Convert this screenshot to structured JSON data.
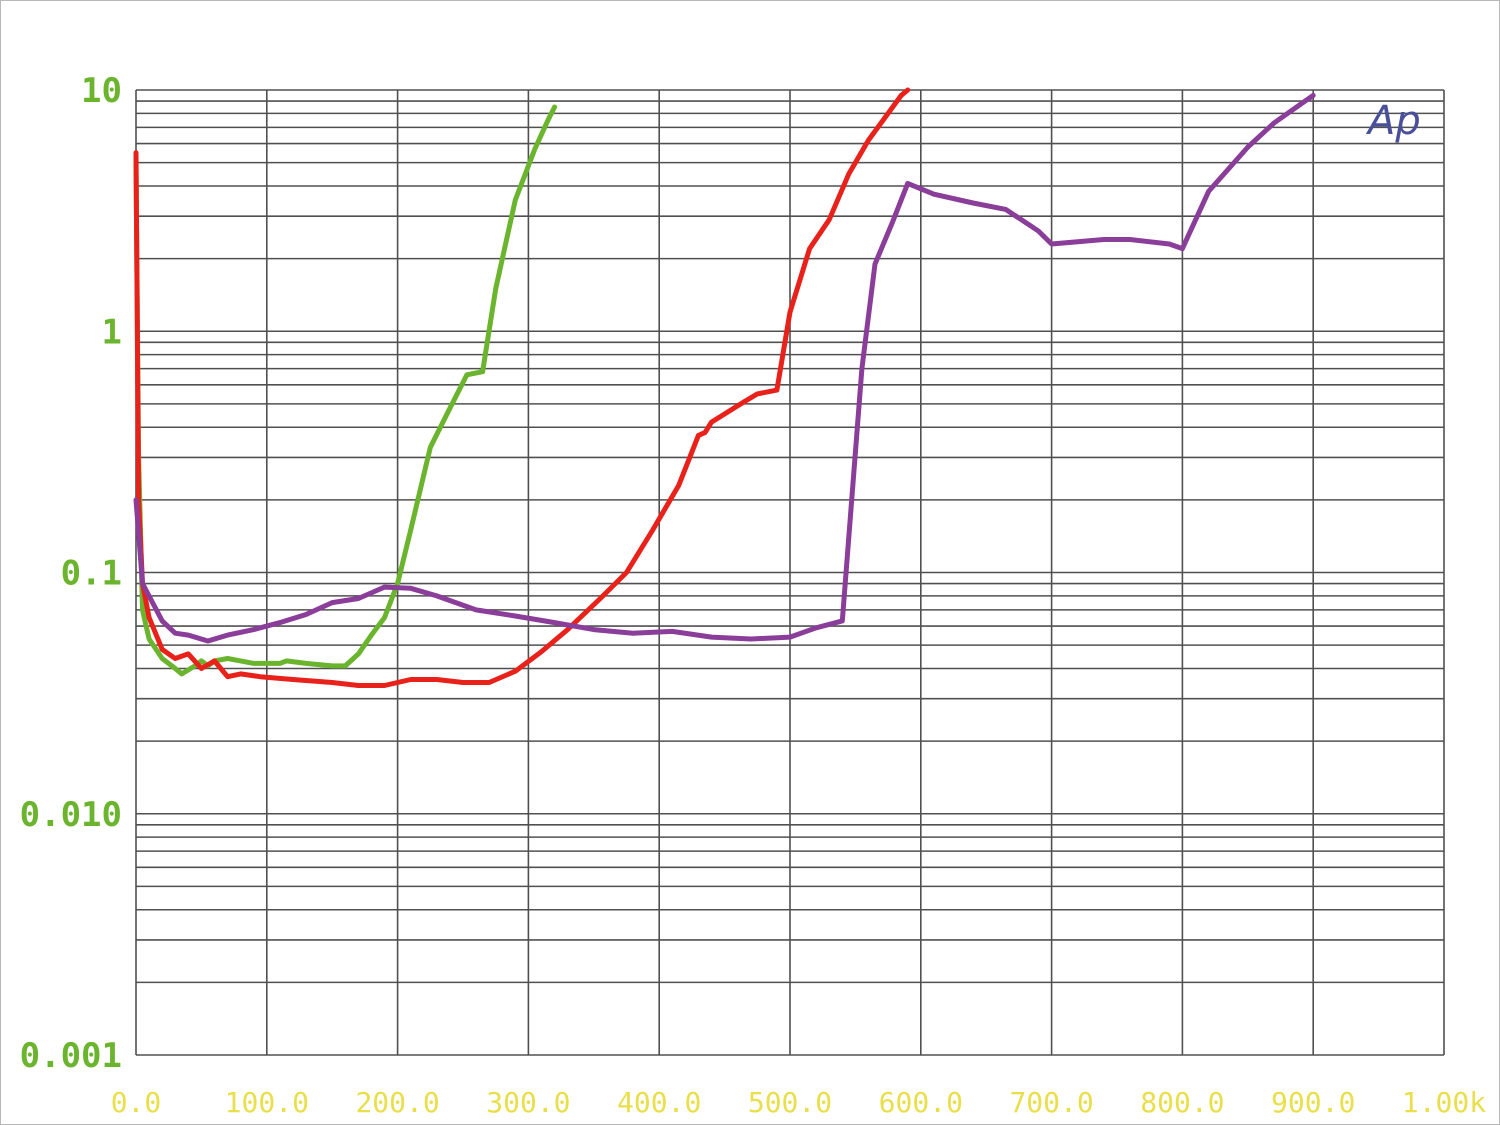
{
  "chart_data": {
    "type": "line",
    "title": "",
    "xlabel": "",
    "ylabel": "",
    "xlim": [
      0,
      1000
    ],
    "ylim": [
      0.001,
      10
    ],
    "y_scale": "log",
    "grid": true,
    "x_ticks": [
      "0.0",
      "100.0",
      "200.0",
      "300.0",
      "400.0",
      "500.0",
      "600.0",
      "700.0",
      "800.0",
      "900.0",
      "1.00k"
    ],
    "y_ticks": [
      {
        "value": 10,
        "label": "10"
      },
      {
        "value": 1,
        "label": "1"
      },
      {
        "value": 0.1,
        "label": "0.1"
      },
      {
        "value": 0.01,
        "label": "0.010"
      },
      {
        "value": 0.001,
        "label": "0.001"
      }
    ],
    "logo": "Ap",
    "series": [
      {
        "color": "#6ab42e",
        "points": [
          [
            0,
            5.0
          ],
          [
            2,
            0.3
          ],
          [
            5,
            0.07
          ],
          [
            10,
            0.053
          ],
          [
            20,
            0.044
          ],
          [
            30,
            0.04
          ],
          [
            35,
            0.038
          ],
          [
            45,
            0.041
          ],
          [
            50,
            0.043
          ],
          [
            55,
            0.041
          ],
          [
            60,
            0.043
          ],
          [
            70,
            0.044
          ],
          [
            80,
            0.043
          ],
          [
            90,
            0.042
          ],
          [
            100,
            0.042
          ],
          [
            110,
            0.042
          ],
          [
            115,
            0.043
          ],
          [
            130,
            0.042
          ],
          [
            150,
            0.041
          ],
          [
            160,
            0.041
          ],
          [
            170,
            0.046
          ],
          [
            180,
            0.055
          ],
          [
            190,
            0.065
          ],
          [
            200,
            0.09
          ],
          [
            210,
            0.15
          ],
          [
            225,
            0.33
          ],
          [
            240,
            0.48
          ],
          [
            253,
            0.66
          ],
          [
            265,
            0.68
          ],
          [
            275,
            1.5
          ],
          [
            290,
            3.5
          ],
          [
            305,
            5.7
          ],
          [
            315,
            7.5
          ],
          [
            320,
            8.5
          ]
        ]
      },
      {
        "color": "#e8221b",
        "points": [
          [
            0,
            5.5
          ],
          [
            2,
            0.2
          ],
          [
            5,
            0.09
          ],
          [
            10,
            0.065
          ],
          [
            20,
            0.048
          ],
          [
            30,
            0.044
          ],
          [
            40,
            0.046
          ],
          [
            50,
            0.04
          ],
          [
            60,
            0.043
          ],
          [
            70,
            0.037
          ],
          [
            80,
            0.038
          ],
          [
            95,
            0.037
          ],
          [
            120,
            0.036
          ],
          [
            150,
            0.035
          ],
          [
            170,
            0.034
          ],
          [
            190,
            0.034
          ],
          [
            210,
            0.036
          ],
          [
            230,
            0.036
          ],
          [
            250,
            0.035
          ],
          [
            270,
            0.035
          ],
          [
            290,
            0.039
          ],
          [
            310,
            0.047
          ],
          [
            330,
            0.058
          ],
          [
            355,
            0.078
          ],
          [
            375,
            0.1
          ],
          [
            395,
            0.15
          ],
          [
            415,
            0.23
          ],
          [
            430,
            0.37
          ],
          [
            435,
            0.38
          ],
          [
            440,
            0.42
          ],
          [
            465,
            0.51
          ],
          [
            475,
            0.55
          ],
          [
            490,
            0.57
          ],
          [
            500,
            1.2
          ],
          [
            515,
            2.2
          ],
          [
            530,
            2.9
          ],
          [
            545,
            4.5
          ],
          [
            560,
            6.2
          ],
          [
            575,
            8.0
          ],
          [
            585,
            9.5
          ],
          [
            590,
            10
          ]
        ]
      },
      {
        "color": "#8b3d9a",
        "points": [
          [
            0,
            0.2
          ],
          [
            5,
            0.09
          ],
          [
            20,
            0.063
          ],
          [
            30,
            0.056
          ],
          [
            40,
            0.055
          ],
          [
            55,
            0.052
          ],
          [
            70,
            0.055
          ],
          [
            90,
            0.058
          ],
          [
            110,
            0.062
          ],
          [
            130,
            0.067
          ],
          [
            150,
            0.075
          ],
          [
            170,
            0.078
          ],
          [
            190,
            0.087
          ],
          [
            210,
            0.086
          ],
          [
            230,
            0.08
          ],
          [
            260,
            0.07
          ],
          [
            290,
            0.066
          ],
          [
            320,
            0.062
          ],
          [
            350,
            0.058
          ],
          [
            380,
            0.056
          ],
          [
            410,
            0.057
          ],
          [
            440,
            0.054
          ],
          [
            470,
            0.053
          ],
          [
            500,
            0.054
          ],
          [
            520,
            0.059
          ],
          [
            540,
            0.063
          ],
          [
            555,
            0.7
          ],
          [
            565,
            1.9
          ],
          [
            578,
            2.8
          ],
          [
            590,
            4.1
          ],
          [
            610,
            3.7
          ],
          [
            640,
            3.4
          ],
          [
            665,
            3.2
          ],
          [
            690,
            2.6
          ],
          [
            700,
            2.3
          ],
          [
            740,
            2.4
          ],
          [
            760,
            2.4
          ],
          [
            790,
            2.3
          ],
          [
            800,
            2.2
          ],
          [
            820,
            3.8
          ],
          [
            850,
            5.8
          ],
          [
            870,
            7.3
          ],
          [
            890,
            8.7
          ],
          [
            900,
            9.5
          ]
        ]
      }
    ]
  }
}
